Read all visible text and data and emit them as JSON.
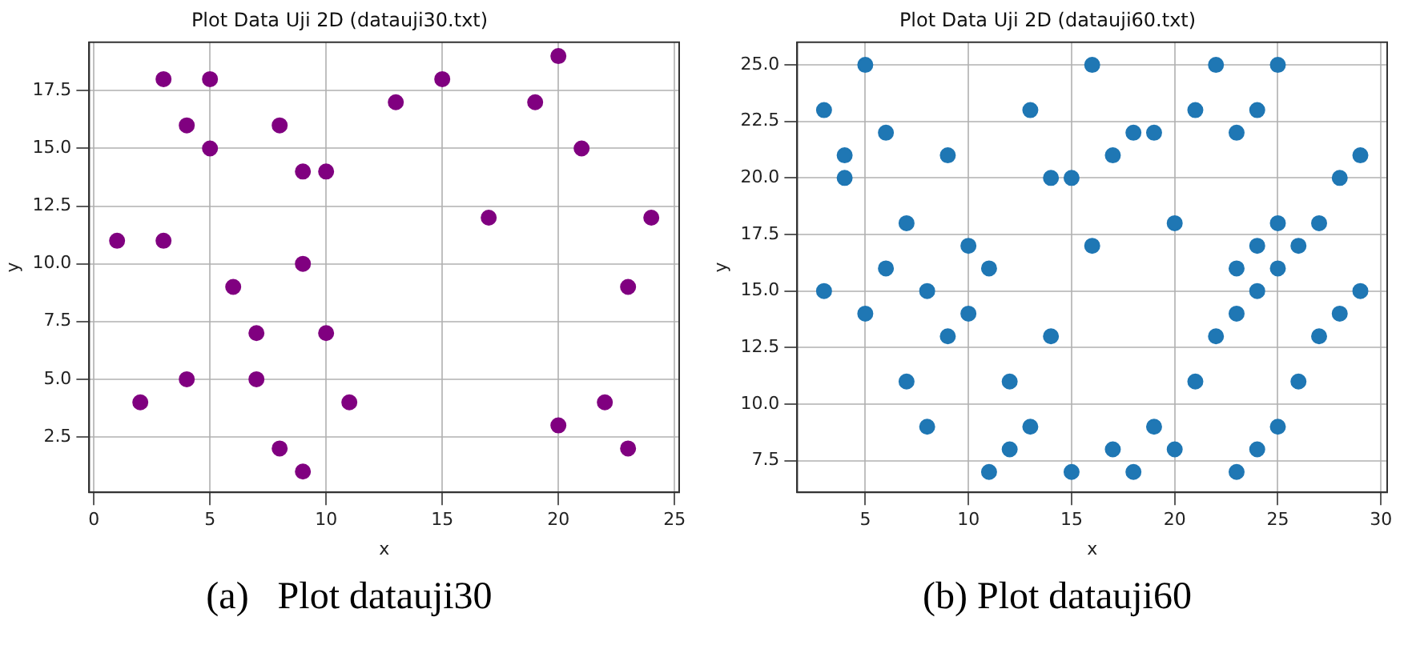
{
  "chart_data": [
    {
      "type": "scatter",
      "title": "Plot Data Uji 2D (datauji30.txt)",
      "xlabel": "x",
      "ylabel": "y",
      "color": "#800080",
      "marker": "circle",
      "grid": true,
      "x": [
        1,
        2,
        3,
        3,
        4,
        4,
        5,
        5,
        6,
        7,
        7,
        8,
        8,
        9,
        9,
        9,
        10,
        10,
        11,
        13,
        15,
        17,
        19,
        20,
        20,
        21,
        22,
        23,
        23,
        24
      ],
      "values": [
        11,
        4,
        18,
        11,
        16,
        5,
        18,
        15,
        9,
        7,
        5,
        16,
        2,
        14,
        10,
        1,
        14,
        7,
        4,
        17,
        18,
        12,
        17,
        19,
        3,
        15,
        4,
        9,
        2,
        12
      ],
      "xlim": [
        -0.2,
        25.2
      ],
      "xticks": [
        0,
        5,
        10,
        15,
        20,
        25
      ],
      "ylim": [
        0.1,
        19.6
      ],
      "yticks": [
        {
          "value": 2.5,
          "label": "2.5"
        },
        {
          "value": 5,
          "label": "5.0"
        },
        {
          "value": 7.5,
          "label": "7.5"
        },
        {
          "value": 10,
          "label": "10.0"
        },
        {
          "value": 12.5,
          "label": "12.5"
        },
        {
          "value": 15,
          "label": "15.0"
        },
        {
          "value": 17.5,
          "label": "17.5"
        }
      ],
      "annotations": [
        "(a)   Plot datauji30"
      ]
    },
    {
      "type": "scatter",
      "title": "Plot Data Uji 2D (datauji60.txt)",
      "xlabel": "x",
      "ylabel": "y",
      "color": "#1f77b4",
      "marker": "circle",
      "grid": true,
      "x": [
        3,
        3,
        4,
        4,
        5,
        5,
        6,
        6,
        7,
        7,
        8,
        8,
        9,
        9,
        10,
        10,
        11,
        11,
        12,
        12,
        13,
        13,
        14,
        14,
        15,
        15,
        16,
        16,
        17,
        17,
        18,
        18,
        19,
        19,
        20,
        20,
        21,
        21,
        22,
        22,
        23,
        23,
        23,
        23,
        24,
        24,
        24,
        24,
        25,
        25,
        25,
        25,
        26,
        26,
        27,
        27,
        28,
        28,
        29,
        29
      ],
      "values": [
        23,
        15,
        21,
        20,
        25,
        14,
        22,
        16,
        18,
        11,
        15,
        9,
        21,
        13,
        17,
        14,
        16,
        7,
        11,
        8,
        23,
        9,
        20,
        13,
        20,
        7,
        25,
        17,
        21,
        8,
        22,
        7,
        22,
        9,
        18,
        8,
        23,
        11,
        25,
        13,
        22,
        16,
        14,
        7,
        23,
        17,
        15,
        8,
        25,
        18,
        16,
        9,
        17,
        11,
        18,
        13,
        20,
        14,
        21,
        15
      ],
      "xlim": [
        1.7,
        30.3
      ],
      "xticks": [
        5,
        10,
        15,
        20,
        25,
        30
      ],
      "ylim": [
        6.1,
        26
      ],
      "yticks": [
        {
          "value": 7.5,
          "label": "7.5"
        },
        {
          "value": 10,
          "label": "10.0"
        },
        {
          "value": 12.5,
          "label": "12.5"
        },
        {
          "value": 15,
          "label": "15.0"
        },
        {
          "value": 17.5,
          "label": "17.5"
        },
        {
          "value": 20,
          "label": "20.0"
        },
        {
          "value": 22.5,
          "label": "22.5"
        },
        {
          "value": 25,
          "label": "25.0"
        }
      ],
      "annotations": [
        "(b) Plot datauji60"
      ]
    }
  ]
}
